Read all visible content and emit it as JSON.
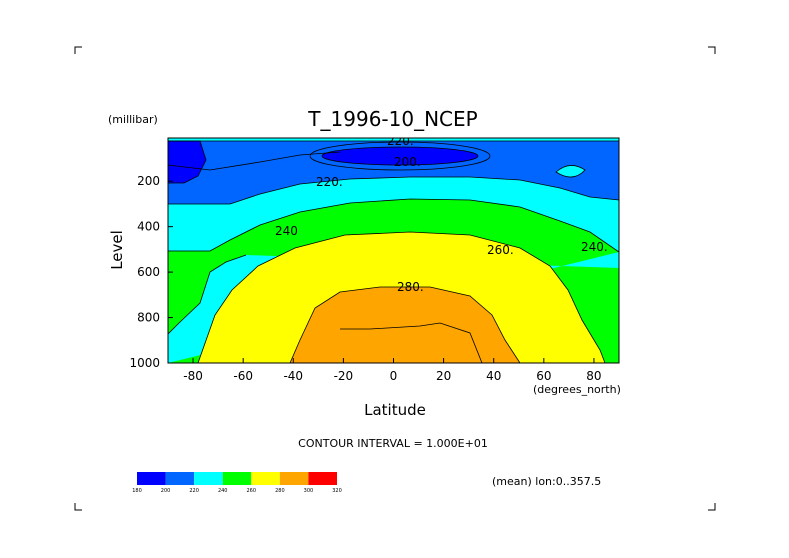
{
  "chart_data": {
    "type": "contour",
    "title": "T_1996-10_NCEP",
    "xlabel": "Latitude",
    "x_units": "(degrees_north)",
    "ylabel": "Level",
    "y_units": "(millibar)",
    "xlim": [
      -90,
      90
    ],
    "ylim": [
      1000,
      10
    ],
    "y_inverted": true,
    "xticks": [
      "-80",
      "-60",
      "-40",
      "-20",
      "0",
      "20",
      "40",
      "60",
      "80"
    ],
    "yticks": [
      "200",
      "400",
      "600",
      "800",
      "1000"
    ],
    "contour_labels": [
      "200.",
      "220.",
      "240",
      "240.",
      "260.",
      "280.",
      "220."
    ],
    "contour_interval_text": "CONTOUR INTERVAL = 1.000E+01",
    "subtitle": "(mean) lon:0..357.5",
    "colorbar": {
      "levels": [
        "180",
        "200",
        "220",
        "240",
        "260",
        "280",
        "300",
        "320"
      ],
      "colors": [
        "#0000ff",
        "#0066ff",
        "#00ffff",
        "#00ff00",
        "#ffff00",
        "#ffa500",
        "#ff0000"
      ]
    }
  }
}
